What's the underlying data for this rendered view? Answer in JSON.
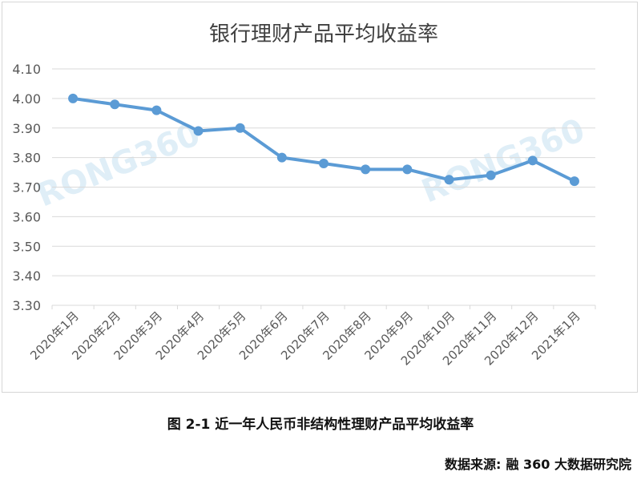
{
  "chart_data": {
    "type": "line",
    "title": "银行理财产品平均收益率",
    "xlabel": "",
    "ylabel": "",
    "categories": [
      "2020年1月",
      "2020年2月",
      "2020年3月",
      "2020年4月",
      "2020年5月",
      "2020年6月",
      "2020年7月",
      "2020年8月",
      "2020年9月",
      "2020年10月",
      "2020年11月",
      "2020年12月",
      "2021年1月"
    ],
    "series": [
      {
        "values": [
          4.0,
          3.98,
          3.96,
          3.89,
          3.9,
          3.8,
          3.78,
          3.76,
          3.76,
          3.725,
          3.74,
          3.79,
          3.72
        ]
      }
    ],
    "ylim": [
      3.3,
      4.1
    ],
    "yticks": [
      "3.30",
      "3.40",
      "3.50",
      "3.60",
      "3.70",
      "3.80",
      "3.90",
      "4.00",
      "4.10"
    ],
    "grid": true,
    "legend": "none",
    "colors": {
      "line": "#5b9bd5",
      "grid": "#d9d9d9",
      "text": "#595959"
    },
    "watermark": "RONG360"
  },
  "caption": "图 2-1 近一年人民币非结构性理财产品平均收益率",
  "source": {
    "label": "数据来源:",
    "value": "融 360 大数据研究院"
  }
}
